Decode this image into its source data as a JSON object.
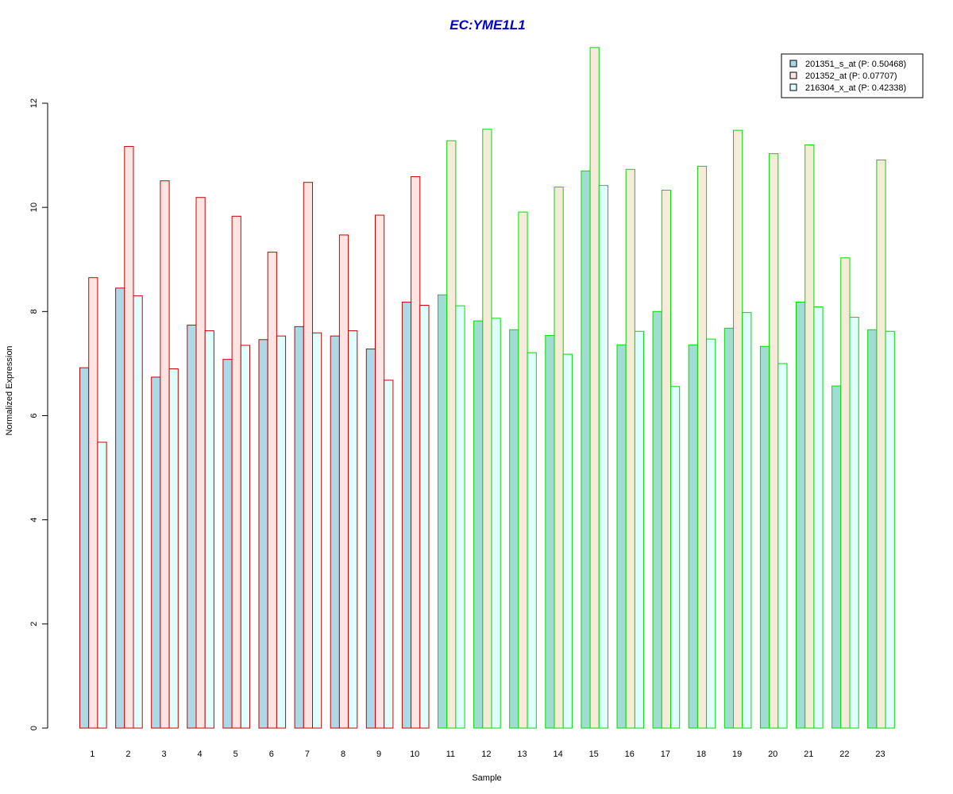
{
  "chart_data": {
    "type": "bar",
    "title": "EC:YME1L1",
    "xlabel": "Sample",
    "ylabel": "Normalized Expression",
    "ylim": [
      0,
      13.2
    ],
    "yticks": [
      0,
      2,
      4,
      6,
      8,
      10,
      12
    ],
    "categories": [
      "1",
      "2",
      "3",
      "4",
      "5",
      "6",
      "7",
      "8",
      "9",
      "10",
      "11",
      "12",
      "13",
      "14",
      "15",
      "16",
      "17",
      "18",
      "19",
      "20",
      "21",
      "22",
      "23"
    ],
    "group_border_colors": [
      "#cc0000",
      "#cc0000",
      "#cc0000",
      "#cc0000",
      "#cc0000",
      "#cc0000",
      "#cc0000",
      "#cc0000",
      "#cc0000",
      "#cc0000",
      "#00dd00",
      "#00dd00",
      "#00dd00",
      "#00dd00",
      "#00dd00",
      "#00dd00",
      "#00dd00",
      "#00dd00",
      "#00dd00",
      "#00dd00",
      "#00dd00",
      "#00dd00",
      "#00dd00"
    ],
    "series": [
      {
        "name": "201351_s_at (P: 0.50468)",
        "fills": [
          "#add8e6",
          "#a0dcd2"
        ],
        "values": [
          6.92,
          8.45,
          6.74,
          7.74,
          7.08,
          7.46,
          7.71,
          7.53,
          7.28,
          8.18,
          8.32,
          7.82,
          7.65,
          7.54,
          10.7,
          7.36,
          8.0,
          7.36,
          7.68,
          7.33,
          8.18,
          6.57,
          7.65
        ]
      },
      {
        "name": "201352_at (P: 0.07707)",
        "fills": [
          "#ffe4e1",
          "#f5ebd8"
        ],
        "values": [
          8.65,
          11.17,
          10.51,
          10.19,
          9.83,
          9.14,
          10.48,
          9.47,
          9.85,
          10.59,
          11.28,
          11.5,
          9.91,
          10.39,
          13.07,
          10.73,
          10.33,
          10.79,
          11.48,
          11.03,
          11.2,
          9.03,
          10.91
        ]
      },
      {
        "name": "216304_x_at (P: 0.42338)",
        "fills": [
          "#e0ffff",
          "#e0ffff"
        ],
        "values": [
          5.49,
          8.3,
          6.9,
          7.63,
          7.35,
          7.53,
          7.59,
          7.63,
          6.68,
          8.12,
          8.11,
          7.87,
          7.21,
          7.18,
          10.42,
          7.62,
          6.56,
          7.47,
          7.98,
          7.0,
          8.09,
          7.89,
          7.62
        ]
      }
    ],
    "legend_position": "top-right",
    "legend_box_fills": [
      "#add8e6",
      "#ffe4e1",
      "#e0ffff"
    ],
    "grid": false
  }
}
